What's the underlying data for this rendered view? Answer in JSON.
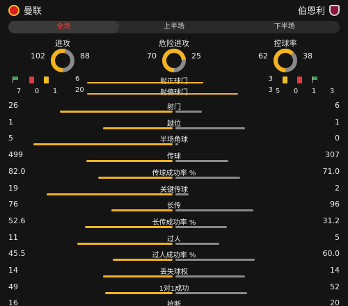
{
  "header": {
    "home_team": "曼联",
    "away_team": "伯恩利"
  },
  "tabs": [
    {
      "label": "全场",
      "active": true
    },
    {
      "label": "上半场",
      "active": false
    },
    {
      "label": "下半场",
      "active": false
    }
  ],
  "donuts": [
    {
      "title": "进攻",
      "home": 102,
      "away": 88
    },
    {
      "title": "危险进攻",
      "home": 70,
      "away": 25
    },
    {
      "title": "控球率",
      "home": 62,
      "away": 38
    }
  ],
  "colors": {
    "home": "#f2b31f",
    "away": "#8a8a8a",
    "accent": "#ff3b30"
  },
  "events": {
    "home": {
      "corners": 7,
      "red_cards": 0,
      "yellow_cards": 1
    },
    "away": {
      "corners": 3,
      "red_cards": 0,
      "yellow_cards": 1
    }
  },
  "shots": {
    "on_target": {
      "label": "射正球门",
      "home": 6,
      "away": 3
    },
    "off_target": {
      "label": "射偏球门",
      "home": 20,
      "away": 3
    },
    "away_extra": 5
  },
  "stats": [
    {
      "label": "射门",
      "home": "26",
      "away": "6"
    },
    {
      "label": "越位",
      "home": "1",
      "away": "1"
    },
    {
      "label": "半场角球",
      "home": "5",
      "away": "0"
    },
    {
      "label": "传球",
      "home": "499",
      "away": "307"
    },
    {
      "label": "传球成功率 %",
      "home": "82.0",
      "away": "71.0"
    },
    {
      "label": "关键传球",
      "home": "19",
      "away": "2"
    },
    {
      "label": "长传",
      "home": "76",
      "away": "96"
    },
    {
      "label": "长传成功率 %",
      "home": "52.6",
      "away": "31.2"
    },
    {
      "label": "过人",
      "home": "11",
      "away": "5"
    },
    {
      "label": "过人成功率 %",
      "home": "45.5",
      "away": "60.0"
    },
    {
      "label": "丢失球权",
      "home": "14",
      "away": "14"
    },
    {
      "label": "1对1成功",
      "home": "49",
      "away": "52"
    },
    {
      "label": "抢断",
      "home": "16",
      "away": "20"
    }
  ]
}
